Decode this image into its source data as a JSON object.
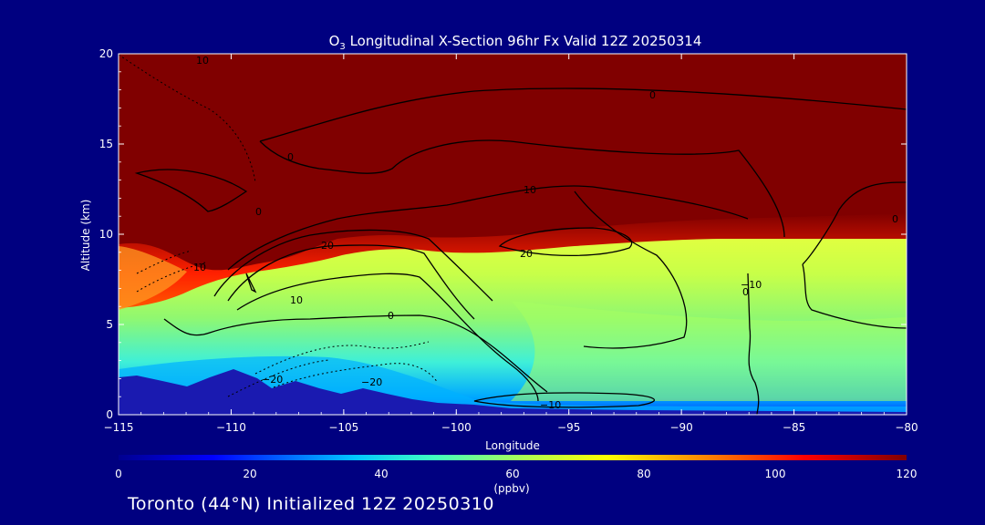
{
  "chart_data": {
    "type": "heatmap",
    "title_prefix": "O",
    "title_sub": "3",
    "title_rest": " Longitudinal X-Section 96hr  Fx Valid 12Z 20250314",
    "xlabel": "Longitude",
    "ylabel": "Altitude (km)",
    "xlim": [
      -115,
      -80
    ],
    "ylim": [
      0,
      20
    ],
    "x_ticks": [
      "-115",
      "-110",
      "-105",
      "-100",
      "-95",
      "-90",
      "-85",
      "-80"
    ],
    "y_ticks": [
      "0",
      "5",
      "10",
      "15",
      "20"
    ],
    "colorbar": {
      "min": 0,
      "max": 120,
      "ticks": [
        "0",
        "20",
        "40",
        "60",
        "80",
        "100",
        "120"
      ],
      "unit": "(ppbv)"
    },
    "contour_labels": [
      "10",
      "0",
      "0",
      "0",
      "10",
      "20",
      "20",
      "10",
      "10",
      "0",
      "-20",
      "-20",
      "-10",
      "0",
      "0",
      "-10"
    ],
    "footer": "Toronto (44°N) Initialized 12Z 20250310"
  },
  "colors": {
    "background": "#000080",
    "stratosphere": "#800000",
    "terrain": "#1a1ab0"
  }
}
